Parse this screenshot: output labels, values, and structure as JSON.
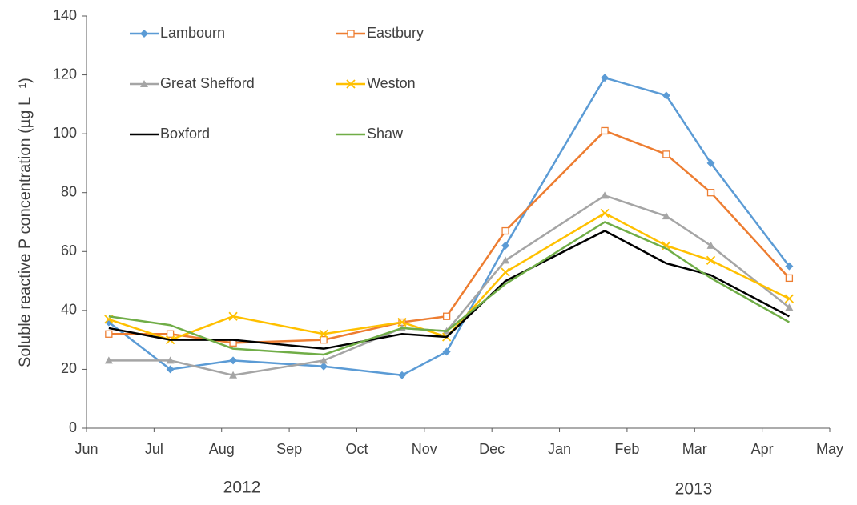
{
  "chart_data": {
    "type": "line",
    "ylabel": "Soluble reactive P concentration (µg L⁻¹)",
    "annotations": [
      "2012",
      "2013"
    ],
    "x": [
      0.33,
      1.24,
      2.17,
      3.51,
      4.67,
      5.33,
      6.2,
      7.67,
      8.58,
      9.24,
      10.4
    ],
    "xlim": [
      0,
      11
    ],
    "xticks": [
      {
        "value": 0,
        "label": "Jun"
      },
      {
        "value": 1,
        "label": "Jul"
      },
      {
        "value": 2,
        "label": "Aug"
      },
      {
        "value": 3,
        "label": "Sep"
      },
      {
        "value": 4,
        "label": "Oct"
      },
      {
        "value": 5,
        "label": "Nov"
      },
      {
        "value": 6,
        "label": "Dec"
      },
      {
        "value": 7,
        "label": "Jan"
      },
      {
        "value": 8,
        "label": "Feb"
      },
      {
        "value": 9,
        "label": "Mar"
      },
      {
        "value": 10,
        "label": "Apr"
      },
      {
        "value": 11,
        "label": "May"
      }
    ],
    "ylim": [
      0,
      140
    ],
    "yticks": [
      0,
      20,
      40,
      60,
      80,
      100,
      120,
      140
    ],
    "grid": false,
    "legend": "upper-left",
    "series": [
      {
        "name": "Lambourn",
        "color": "#5b9bd5",
        "marker": "diamond",
        "values": [
          36,
          20,
          23,
          21,
          18,
          26,
          62,
          119,
          113,
          90,
          55
        ]
      },
      {
        "name": "Eastbury",
        "color": "#ed7d31",
        "marker": "open-square",
        "values": [
          32,
          32,
          29,
          30,
          36,
          38,
          67,
          101,
          93,
          80,
          51
        ]
      },
      {
        "name": "Great Shefford",
        "color": "#a5a5a5",
        "marker": "triangle",
        "values": [
          23,
          23,
          18,
          23,
          34,
          33,
          57,
          79,
          72,
          62,
          41
        ]
      },
      {
        "name": "Weston",
        "color": "#ffc000",
        "marker": "cross",
        "values": [
          37,
          30,
          38,
          32,
          36,
          31,
          53,
          73,
          62,
          57,
          44
        ]
      },
      {
        "name": "Boxford",
        "color": "#000000",
        "marker": "none",
        "values": [
          34,
          30,
          30,
          27,
          32,
          31,
          50,
          67,
          56,
          52,
          38
        ]
      },
      {
        "name": "Shaw",
        "color": "#70ad47",
        "marker": "none",
        "values": [
          38,
          35,
          27,
          25,
          34,
          33,
          49,
          70,
          61,
          51,
          36
        ]
      }
    ]
  }
}
